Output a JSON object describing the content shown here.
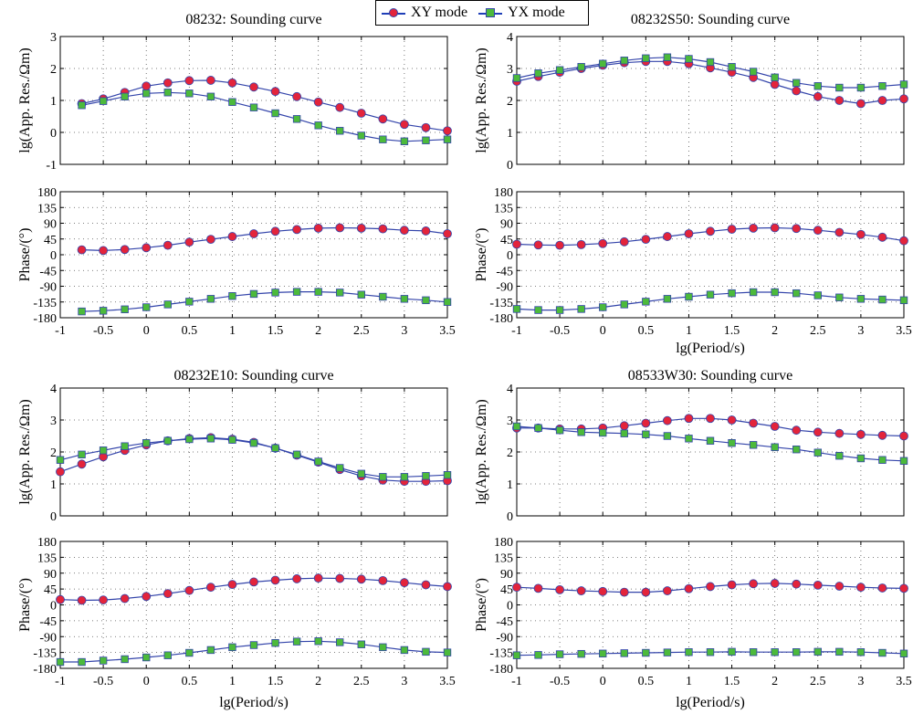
{
  "legend": {
    "xy": "XY mode",
    "yx": "YX mode"
  },
  "colors": {
    "xy_fill": "#e3243b",
    "yx_fill": "#4cba3b",
    "edge": "#3344aa"
  },
  "chart_data": [
    {
      "type": "scatter",
      "title": "08232: Sounding curve",
      "res_ylabel": "lg(App. Res./Ωm)",
      "phase_ylabel": "Phase/(°)",
      "xlabel": "",
      "xlim": [
        -1,
        3.5
      ],
      "res_ylim": [
        -1,
        3
      ],
      "phase_ylim": [
        -180,
        180
      ],
      "res_series": [
        {
          "name": "XY mode",
          "x": [
            -0.75,
            -0.5,
            -0.25,
            0,
            0.25,
            0.5,
            0.75,
            1,
            1.25,
            1.5,
            1.75,
            2,
            2.25,
            2.5,
            2.75,
            3,
            3.25,
            3.5
          ],
          "values": [
            0.9,
            1.05,
            1.25,
            1.45,
            1.55,
            1.62,
            1.63,
            1.55,
            1.42,
            1.28,
            1.12,
            0.95,
            0.78,
            0.6,
            0.42,
            0.25,
            0.15,
            0.05
          ]
        },
        {
          "name": "YX mode",
          "x": [
            -0.75,
            -0.5,
            -0.25,
            0,
            0.25,
            0.5,
            0.75,
            1,
            1.25,
            1.5,
            1.75,
            2,
            2.25,
            2.5,
            2.75,
            3,
            3.25,
            3.5
          ],
          "values": [
            0.85,
            0.98,
            1.12,
            1.22,
            1.25,
            1.22,
            1.12,
            0.95,
            0.78,
            0.6,
            0.42,
            0.22,
            0.05,
            -0.1,
            -0.22,
            -0.28,
            -0.25,
            -0.22
          ]
        }
      ],
      "phase_series": [
        {
          "name": "XY mode",
          "x": [
            -0.75,
            -0.5,
            -0.25,
            0,
            0.25,
            0.5,
            0.75,
            1,
            1.25,
            1.5,
            1.75,
            2,
            2.25,
            2.5,
            2.75,
            3,
            3.25,
            3.5
          ],
          "values": [
            14,
            12,
            15,
            20,
            27,
            36,
            44,
            52,
            60,
            67,
            72,
            76,
            77,
            76,
            74,
            70,
            68,
            60
          ]
        },
        {
          "name": "YX mode",
          "x": [
            -0.75,
            -0.5,
            -0.25,
            0,
            0.25,
            0.5,
            0.75,
            1,
            1.25,
            1.5,
            1.75,
            2,
            2.25,
            2.5,
            2.75,
            3,
            3.25,
            3.5
          ],
          "values": [
            -162,
            -160,
            -156,
            -150,
            -142,
            -134,
            -126,
            -118,
            -112,
            -108,
            -106,
            -106,
            -108,
            -114,
            -120,
            -126,
            -130,
            -135
          ]
        }
      ]
    },
    {
      "type": "scatter",
      "title": "08232S50: Sounding curve",
      "res_ylabel": "lg(App. Res./Ωm)",
      "phase_ylabel": "Phase/(°)",
      "xlabel": "lg(Period/s)",
      "xlim": [
        -1,
        3.5
      ],
      "res_ylim": [
        0,
        4
      ],
      "phase_ylim": [
        -180,
        180
      ],
      "res_series": [
        {
          "name": "XY mode",
          "x": [
            -1,
            -0.75,
            -0.5,
            -0.25,
            0,
            0.25,
            0.5,
            0.75,
            1,
            1.25,
            1.5,
            1.75,
            2,
            2.25,
            2.5,
            2.75,
            3,
            3.25,
            3.5
          ],
          "values": [
            2.6,
            2.75,
            2.88,
            3.0,
            3.1,
            3.18,
            3.22,
            3.22,
            3.15,
            3.02,
            2.88,
            2.72,
            2.5,
            2.3,
            2.12,
            2.0,
            1.9,
            2.0,
            2.05
          ]
        },
        {
          "name": "YX mode",
          "x": [
            -1,
            -0.75,
            -0.5,
            -0.25,
            0,
            0.25,
            0.5,
            0.75,
            1,
            1.25,
            1.5,
            1.75,
            2,
            2.25,
            2.5,
            2.75,
            3,
            3.25,
            3.5
          ],
          "values": [
            2.7,
            2.85,
            2.95,
            3.05,
            3.15,
            3.25,
            3.32,
            3.35,
            3.3,
            3.2,
            3.05,
            2.9,
            2.72,
            2.55,
            2.45,
            2.4,
            2.4,
            2.45,
            2.5
          ]
        }
      ],
      "phase_series": [
        {
          "name": "XY mode",
          "x": [
            -1,
            -0.75,
            -0.5,
            -0.25,
            0,
            0.25,
            0.5,
            0.75,
            1,
            1.25,
            1.5,
            1.75,
            2,
            2.25,
            2.5,
            2.75,
            3,
            3.25,
            3.5
          ],
          "values": [
            30,
            28,
            27,
            29,
            32,
            37,
            44,
            52,
            60,
            67,
            73,
            76,
            77,
            75,
            70,
            64,
            58,
            50,
            40
          ]
        },
        {
          "name": "YX mode",
          "x": [
            -1,
            -0.75,
            -0.5,
            -0.25,
            0,
            0.25,
            0.5,
            0.75,
            1,
            1.25,
            1.5,
            1.75,
            2,
            2.25,
            2.5,
            2.75,
            3,
            3.25,
            3.5
          ],
          "values": [
            -155,
            -158,
            -158,
            -155,
            -150,
            -142,
            -134,
            -126,
            -120,
            -114,
            -110,
            -107,
            -107,
            -110,
            -116,
            -122,
            -126,
            -128,
            -130
          ]
        }
      ]
    },
    {
      "type": "scatter",
      "title": "08232E10: Sounding curve",
      "res_ylabel": "lg(App. Res./Ωm)",
      "phase_ylabel": "Phase/(°)",
      "xlabel": "lg(Period/s)",
      "xlim": [
        -1,
        3.5
      ],
      "res_ylim": [
        0,
        4
      ],
      "phase_ylim": [
        -180,
        180
      ],
      "res_series": [
        {
          "name": "XY mode",
          "x": [
            -1,
            -0.75,
            -0.5,
            -0.25,
            0,
            0.25,
            0.5,
            0.75,
            1,
            1.25,
            1.5,
            1.75,
            2,
            2.25,
            2.5,
            2.75,
            3,
            3.25,
            3.5
          ],
          "values": [
            1.38,
            1.62,
            1.85,
            2.05,
            2.22,
            2.35,
            2.42,
            2.45,
            2.4,
            2.3,
            2.12,
            1.9,
            1.68,
            1.45,
            1.25,
            1.12,
            1.08,
            1.08,
            1.1
          ]
        },
        {
          "name": "YX mode",
          "x": [
            -1,
            -0.75,
            -0.5,
            -0.25,
            0,
            0.25,
            0.5,
            0.75,
            1,
            1.25,
            1.5,
            1.75,
            2,
            2.25,
            2.5,
            2.75,
            3,
            3.25,
            3.5
          ],
          "values": [
            1.75,
            1.92,
            2.05,
            2.18,
            2.28,
            2.35,
            2.4,
            2.42,
            2.38,
            2.28,
            2.12,
            1.92,
            1.7,
            1.5,
            1.32,
            1.22,
            1.22,
            1.25,
            1.28
          ]
        }
      ],
      "phase_series": [
        {
          "name": "XY mode",
          "x": [
            -1,
            -0.75,
            -0.5,
            -0.25,
            0,
            0.25,
            0.5,
            0.75,
            1,
            1.25,
            1.5,
            1.75,
            2,
            2.25,
            2.5,
            2.75,
            3,
            3.25,
            3.5
          ],
          "values": [
            15,
            13,
            14,
            18,
            24,
            32,
            41,
            50,
            58,
            65,
            70,
            74,
            76,
            75,
            73,
            69,
            63,
            57,
            52
          ]
        },
        {
          "name": "YX mode",
          "x": [
            -1,
            -0.75,
            -0.5,
            -0.25,
            0,
            0.25,
            0.5,
            0.75,
            1,
            1.25,
            1.5,
            1.75,
            2,
            2.25,
            2.5,
            2.75,
            3,
            3.25,
            3.5
          ],
          "values": [
            -162,
            -162,
            -158,
            -154,
            -149,
            -143,
            -136,
            -128,
            -120,
            -114,
            -108,
            -104,
            -103,
            -106,
            -112,
            -120,
            -128,
            -133,
            -135
          ]
        }
      ]
    },
    {
      "type": "scatter",
      "title": "08533W30: Sounding curve",
      "res_ylabel": "lg(App. Res./Ωm)",
      "phase_ylabel": "Phase/(°)",
      "xlabel": "lg(Period/s)",
      "xlim": [
        -1,
        3.5
      ],
      "res_ylim": [
        0,
        4
      ],
      "phase_ylim": [
        -180,
        180
      ],
      "res_series": [
        {
          "name": "XY mode",
          "x": [
            -1,
            -0.75,
            -0.5,
            -0.25,
            0,
            0.25,
            0.5,
            0.75,
            1,
            1.25,
            1.5,
            1.75,
            2,
            2.25,
            2.5,
            2.75,
            3,
            3.25,
            3.5
          ],
          "values": [
            2.75,
            2.75,
            2.72,
            2.72,
            2.75,
            2.82,
            2.9,
            2.98,
            3.05,
            3.05,
            3.0,
            2.9,
            2.8,
            2.68,
            2.62,
            2.58,
            2.55,
            2.52,
            2.5
          ]
        },
        {
          "name": "YX mode",
          "x": [
            -1,
            -0.75,
            -0.5,
            -0.25,
            0,
            0.25,
            0.5,
            0.75,
            1,
            1.25,
            1.5,
            1.75,
            2,
            2.25,
            2.5,
            2.75,
            3,
            3.25,
            3.5
          ],
          "values": [
            2.8,
            2.75,
            2.68,
            2.62,
            2.6,
            2.58,
            2.55,
            2.5,
            2.42,
            2.35,
            2.28,
            2.22,
            2.15,
            2.08,
            1.98,
            1.88,
            1.8,
            1.75,
            1.72
          ]
        }
      ],
      "phase_series": [
        {
          "name": "XY mode",
          "x": [
            -1,
            -0.75,
            -0.5,
            -0.25,
            0,
            0.25,
            0.5,
            0.75,
            1,
            1.25,
            1.5,
            1.75,
            2,
            2.25,
            2.5,
            2.75,
            3,
            3.25,
            3.5
          ],
          "values": [
            50,
            47,
            43,
            40,
            38,
            36,
            36,
            40,
            46,
            52,
            57,
            60,
            61,
            59,
            56,
            53,
            50,
            48,
            47
          ]
        },
        {
          "name": "YX mode",
          "x": [
            -1,
            -0.75,
            -0.5,
            -0.25,
            0,
            0.25,
            0.5,
            0.75,
            1,
            1.25,
            1.5,
            1.75,
            2,
            2.25,
            2.5,
            2.75,
            3,
            3.25,
            3.5
          ],
          "values": [
            -143,
            -142,
            -140,
            -139,
            -138,
            -137,
            -136,
            -135,
            -134,
            -134,
            -133,
            -134,
            -134,
            -134,
            -133,
            -133,
            -134,
            -136,
            -138
          ]
        }
      ]
    }
  ]
}
